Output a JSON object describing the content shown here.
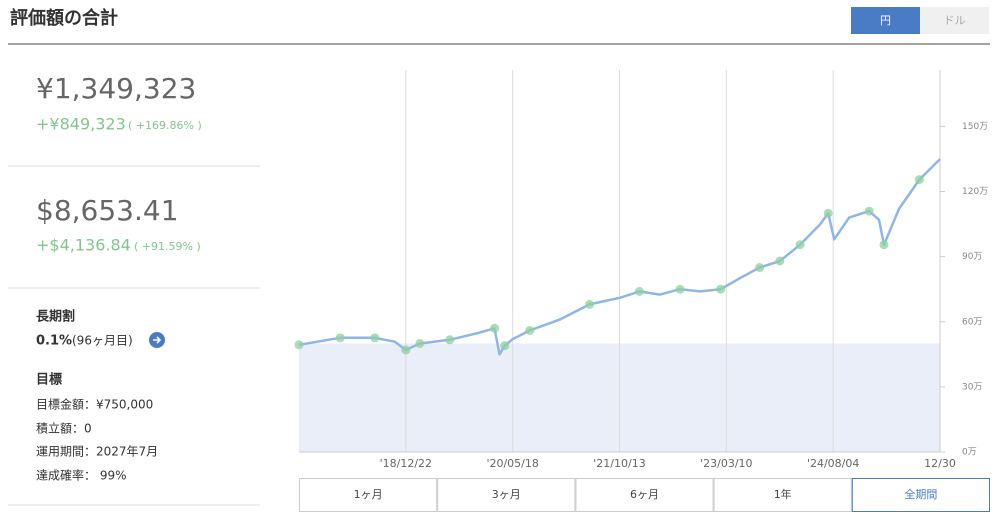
{
  "header": {
    "title": "評価額の合計",
    "currency_toggle": [
      {
        "label": "円",
        "active": true
      },
      {
        "label": "ドル",
        "active": false
      }
    ]
  },
  "summary": {
    "jpy": {
      "value": "¥1,349,323",
      "gain": "+¥849,323",
      "gain_pct": "( +169.86% )"
    },
    "usd": {
      "value": "$8,653.41",
      "gain": "+$4,136.84",
      "gain_pct": "( +91.59% )"
    },
    "discount": {
      "title": "長期割",
      "rate": "0.1%",
      "note": "(96ヶ月目)"
    },
    "goal": {
      "title": "目標",
      "lines": [
        "目標金額：¥750,000",
        "積立額：0",
        "運用期間：2027年7月",
        "達成確率： 99%"
      ]
    }
  },
  "chart_data": {
    "type": "line",
    "x": [
      "2017-07-27",
      "2018-02-10",
      "2018-07-26",
      "2018-10-30",
      "2018-12-22",
      "2019-02-27",
      "2019-07-21",
      "2019-12-11",
      "2020-02-21",
      "2020-03-16",
      "2020-04-10",
      "2020-05-18",
      "2020-08-08",
      "2020-12-30",
      "2021-05-22",
      "2021-10-13",
      "2022-01-17",
      "2022-04-25",
      "2022-07-31",
      "2022-11-05",
      "2023-02-11",
      "2023-05-12",
      "2023-08-17",
      "2023-11-22",
      "2024-02-27",
      "2024-06-03",
      "2024-07-11",
      "2024-08-09",
      "2024-10-20",
      "2025-01-24",
      "2025-03-12",
      "2025-04-05",
      "2025-06-16",
      "2025-09-22",
      "2025-12-30"
    ],
    "series": [
      {
        "color": "#8fb6e8",
        "values": [
          494000,
          526000,
          526000,
          508000,
          470000,
          500000,
          517000,
          550000,
          570000,
          450000,
          490000,
          520000,
          560000,
          610000,
          680000,
          710000,
          740000,
          725000,
          750000,
          740000,
          750000,
          800000,
          850000,
          880000,
          955000,
          1050000,
          1100000,
          980000,
          1080000,
          1110000,
          1070000,
          955000,
          1120000,
          1255000,
          1349323
        ]
      }
    ],
    "markers": {
      "color": "#8fcf9f",
      "values": [
        494000,
        526000,
        526000,
        null,
        470000,
        500000,
        517000,
        null,
        570000,
        null,
        490000,
        null,
        560000,
        null,
        680000,
        null,
        740000,
        null,
        750000,
        null,
        750000,
        null,
        850000,
        880000,
        955000,
        null,
        1100000,
        null,
        null,
        1110000,
        null,
        955000,
        null,
        1255000,
        null
      ]
    },
    "principal": 500000,
    "principal_color": "#e9eef8",
    "xlim": [
      "2017-07-27",
      "2025-12-30"
    ],
    "xticks": [
      {
        "value": "2018-12-22",
        "label": "'18/12/22"
      },
      {
        "value": "2020-05-18",
        "label": "'20/05/18"
      },
      {
        "value": "2021-10-13",
        "label": "'21/10/13"
      },
      {
        "value": "2023-03-10",
        "label": "'23/03/10"
      },
      {
        "value": "2024-08-04",
        "label": "'24/08/04"
      },
      {
        "value": "2025-12-30",
        "label": "12/30"
      }
    ],
    "ylim": [
      0,
      1760000
    ],
    "yticks": [
      {
        "value": 0,
        "label": "0万"
      },
      {
        "value": 300000,
        "label": "30万"
      },
      {
        "value": 600000,
        "label": "60万"
      },
      {
        "value": 900000,
        "label": "90万"
      },
      {
        "value": 1200000,
        "label": "120万"
      },
      {
        "value": 1500000,
        "label": "150万"
      }
    ],
    "grid": true
  },
  "range_buttons": [
    {
      "label": "1ヶ月",
      "active": false
    },
    {
      "label": "3ヶ月",
      "active": false
    },
    {
      "label": "6ヶ月",
      "active": false
    },
    {
      "label": "1年",
      "active": false
    },
    {
      "label": "全期間",
      "active": true
    }
  ]
}
